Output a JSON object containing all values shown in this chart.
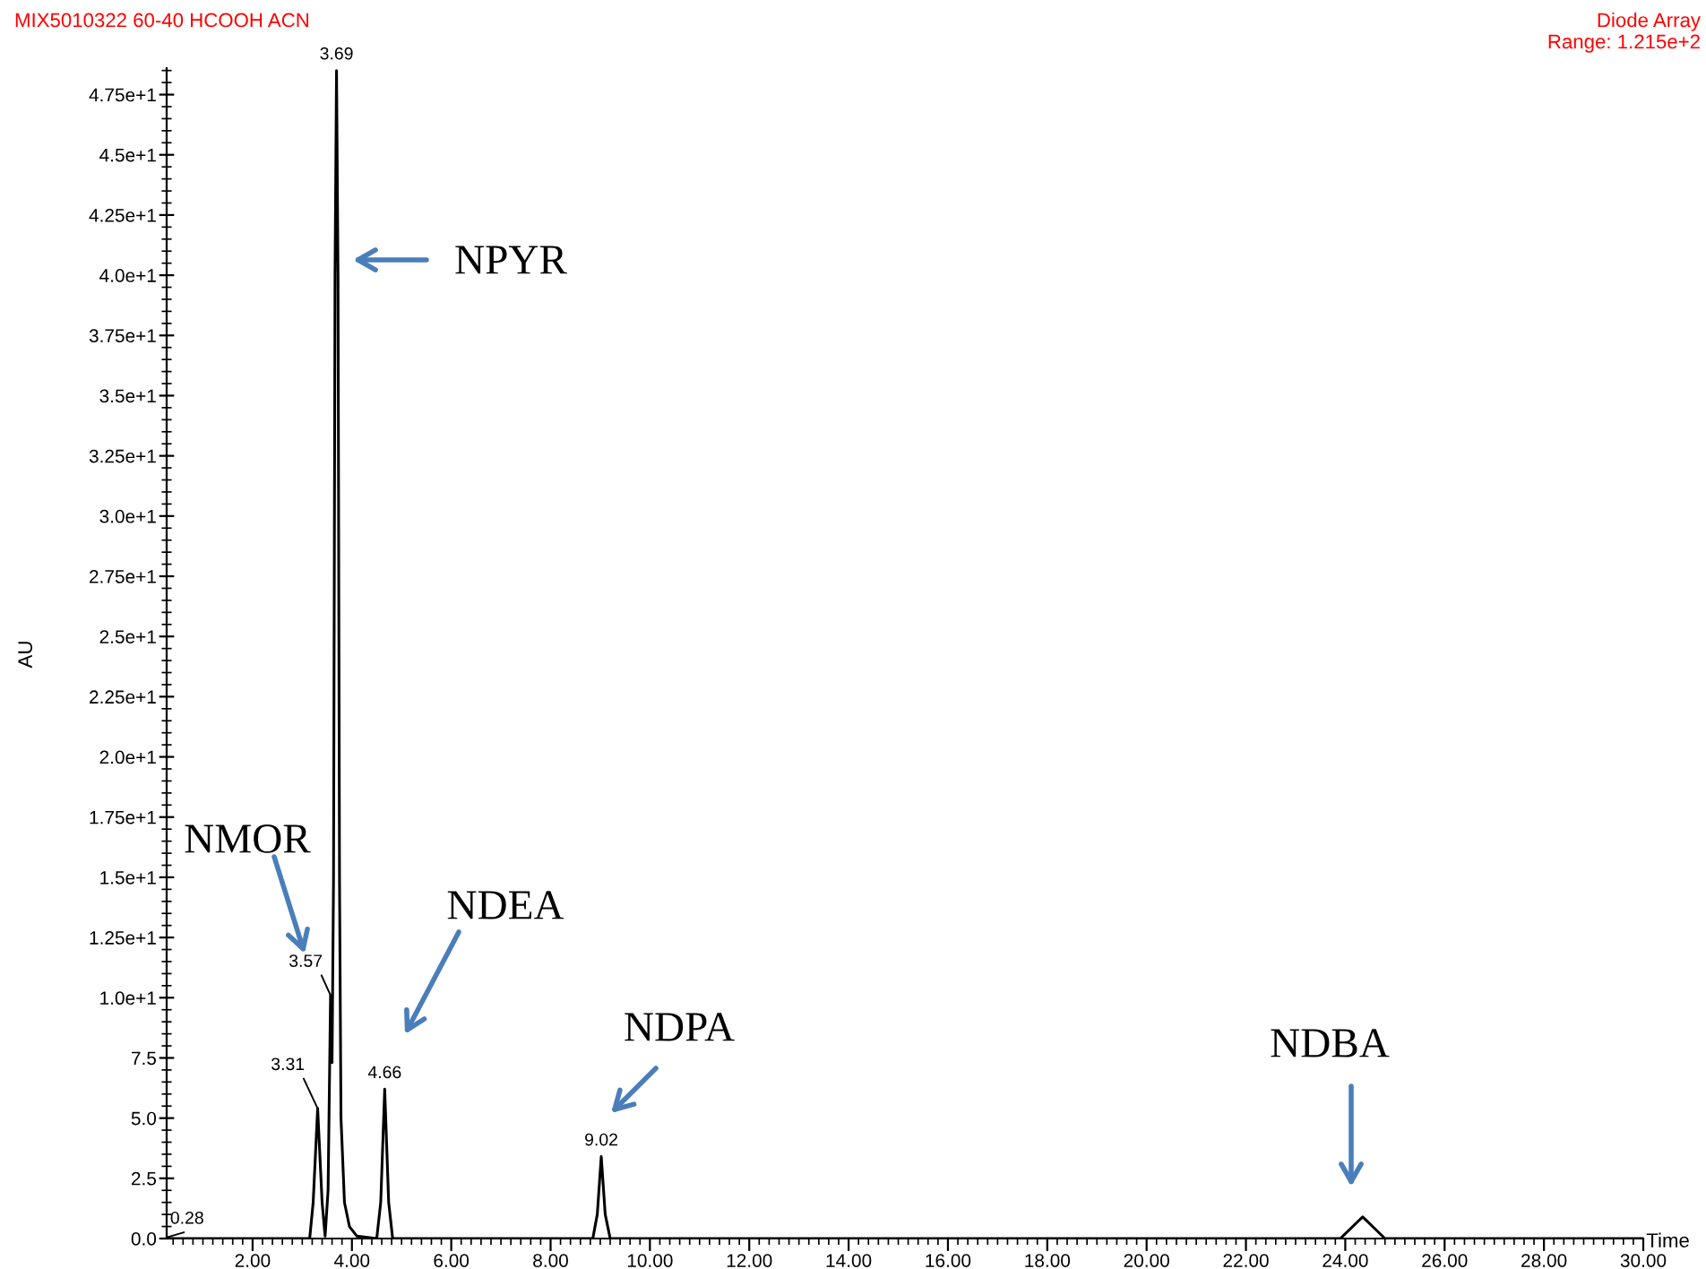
{
  "chart_data": {
    "type": "line",
    "title": "MIX5010322 60-40 HCOOH ACN",
    "xlabel": "Time",
    "ylabel": "AU",
    "series": [
      {
        "color": "#000000",
        "x": [
          0.27,
          0.28,
          0.35,
          3.15,
          3.22,
          3.31,
          3.4,
          3.46,
          3.52,
          3.57,
          3.6,
          3.63,
          3.66,
          3.69,
          3.72,
          3.75,
          3.78,
          3.85,
          3.95,
          4.1,
          4.5,
          4.58,
          4.66,
          4.74,
          4.82,
          8.85,
          8.94,
          9.02,
          9.1,
          9.2,
          23.9,
          24.1,
          24.35,
          24.6,
          24.8,
          30.0
        ],
        "values": [
          0,
          0.05,
          0,
          0,
          1.5,
          5.4,
          1.5,
          0.1,
          2,
          10.1,
          7.3,
          15,
          40,
          48.5,
          40,
          15,
          5,
          1.5,
          0.5,
          0.1,
          0,
          1.5,
          6.2,
          1.5,
          0,
          0,
          1.0,
          3.4,
          1.0,
          0,
          0,
          0.4,
          0.9,
          0.4,
          0,
          0
        ]
      }
    ],
    "xlim": [
      0.27,
      30.0
    ],
    "ylim": [
      0,
      48.6
    ],
    "xticks": [
      {
        "value": 2,
        "label": "2.00"
      },
      {
        "value": 4,
        "label": "4.00"
      },
      {
        "value": 6,
        "label": "6.00"
      },
      {
        "value": 8,
        "label": "8.00"
      },
      {
        "value": 10,
        "label": "10.00"
      },
      {
        "value": 12,
        "label": "12.00"
      },
      {
        "value": 14,
        "label": "14.00"
      },
      {
        "value": 16,
        "label": "16.00"
      },
      {
        "value": 18,
        "label": "18.00"
      },
      {
        "value": 20,
        "label": "20.00"
      },
      {
        "value": 22,
        "label": "22.00"
      },
      {
        "value": 24,
        "label": "24.00"
      },
      {
        "value": 26,
        "label": "26.00"
      },
      {
        "value": 28,
        "label": "28.00"
      },
      {
        "value": 30,
        "label": "30.00"
      }
    ],
    "yticks": [
      {
        "value": 0,
        "label": "0.0"
      },
      2.5,
      {
        "value": 5,
        "label": "5.0"
      },
      7.5,
      {
        "value": 10,
        "label": "1.0e+1"
      },
      {
        "value": 12.5,
        "label": "1.25e+1"
      },
      {
        "value": 15,
        "label": "1.5e+1"
      },
      {
        "value": 17.5,
        "label": "1.75e+1"
      },
      {
        "value": 20,
        "label": "2.0e+1"
      },
      {
        "value": 22.5,
        "label": "2.25e+1"
      },
      {
        "value": 25,
        "label": "2.5e+1"
      },
      {
        "value": 27.5,
        "label": "2.75e+1"
      },
      {
        "value": 30,
        "label": "3.0e+1"
      },
      {
        "value": 32.5,
        "label": "3.25e+1"
      },
      {
        "value": 35,
        "label": "3.5e+1"
      },
      {
        "value": 37.5,
        "label": "3.75e+1"
      },
      {
        "value": 40,
        "label": "4.0e+1"
      },
      {
        "value": 42.5,
        "label": "4.25e+1"
      },
      {
        "value": 45,
        "label": "4.5e+1"
      },
      {
        "value": 47.5,
        "label": "4.75e+1"
      }
    ],
    "annotations": [
      "Diode Array\nRange: 1.215e+2",
      {
        "text": "0.28",
        "x": 0.28,
        "y": 0.05
      },
      {
        "text": "3.31",
        "x": 3.31,
        "y": 5.4
      },
      {
        "text": "3.57",
        "x": 3.57,
        "y": 10.1
      },
      {
        "text": "3.69",
        "x": 3.69,
        "y": 48.5
      },
      {
        "text": "4.66",
        "x": 4.66,
        "y": 6.2
      },
      {
        "text": "9.02",
        "x": 9.02,
        "y": 3.4
      },
      "NPYR",
      "NMOR",
      "NDEA",
      "NDPA",
      "NDBA"
    ],
    "grid": false,
    "legend": false,
    "marker": "none",
    "line_style": "solid"
  }
}
